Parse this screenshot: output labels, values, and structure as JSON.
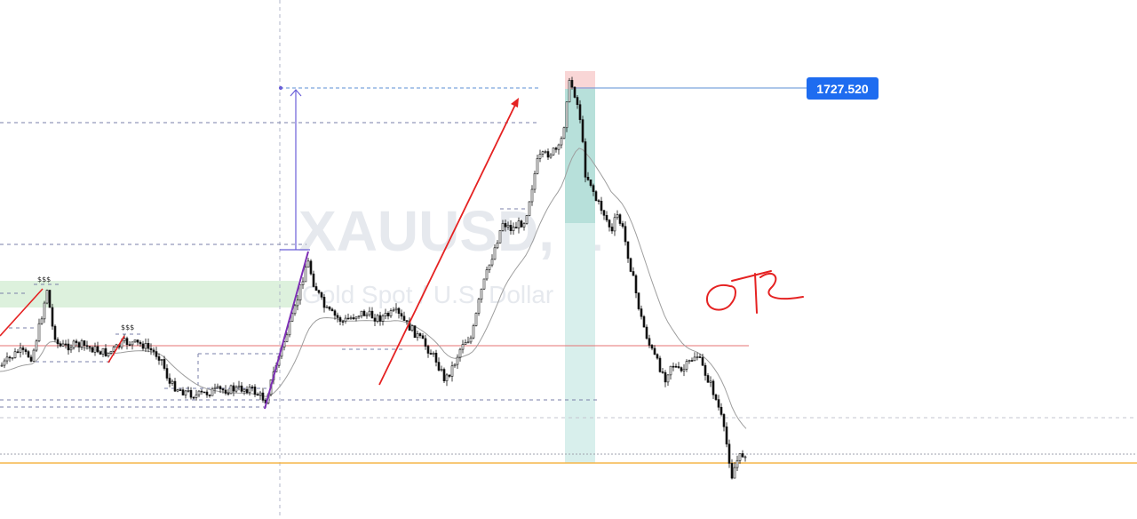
{
  "chart_data": {
    "type": "candlestick",
    "symbol": "XAUUSD, 1",
    "description": "Gold Spot / U.S. Dollar",
    "price_label": "1727.520",
    "marker_labels": [
      "$$$",
      "$$$"
    ],
    "handwritten_note": "OTC",
    "colors": {
      "candle": "#111111",
      "moving_average": "#9e9e9e",
      "horizontal_line": "#e57373",
      "price_line": "#5b8fd6",
      "price_tag": "#1e6cf0",
      "support_line": "#f5b54a",
      "demand_zone": "#d7eed7",
      "stop_zone": "#f9d6d6",
      "target_zone": "#cde9e5",
      "arrow": "#e52222",
      "leg_line": "#7d2fb5",
      "measure_line": "#6b5fd8",
      "dashed_level": "#7a7fa8",
      "vertical_guide": "#b0b6c8"
    }
  }
}
